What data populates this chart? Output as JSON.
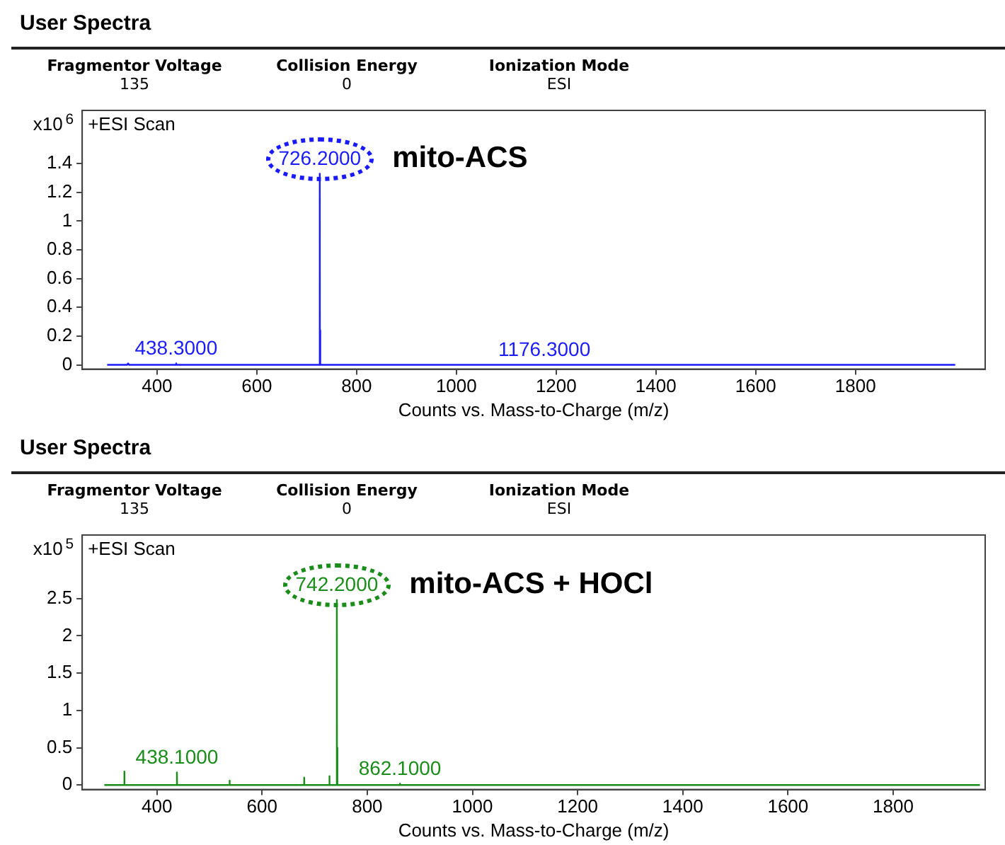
{
  "chart_data": [
    {
      "type": "line",
      "title": "User Spectra",
      "subtitle": "+ESI Scan",
      "xlabel": "Counts vs. Mass-to-Charge (m/z)",
      "ylabel": "x10$^{6}$",
      "annotations": [
        "Fragmentor Voltage",
        "135",
        "Collision Energy",
        "0",
        "Ionization Mode",
        "ESI",
        "mito-ACS",
        {
          "text": "726.2000",
          "x": 726.2,
          "y": 1.33
        },
        {
          "text": "438.3000",
          "x": 438.3,
          "y": 0.01
        },
        {
          "text": "1176.3000",
          "x": 1176.3,
          "y": 0
        }
      ],
      "series": [
        {
          "color": "#1a1aff",
          "x": [
            300,
            340,
            342,
            344,
            438,
            438.3,
            438.6,
            600,
            725.9,
            726.2,
            726.5,
            726.9,
            727.2,
            727.5,
            760,
            1176,
            1176.3,
            1176.6,
            2000
          ],
          "values": [
            0,
            0,
            0.01,
            0,
            0,
            0.01,
            0,
            0,
            0,
            1.33,
            0,
            0,
            0.24,
            0,
            0,
            0,
            0,
            0,
            0
          ]
        }
      ],
      "xlim": [
        250,
        2060
      ],
      "xticks": [
        400,
        600,
        800,
        1000,
        1200,
        1400,
        1600,
        1800
      ],
      "ylim": [
        -0.03,
        1.77
      ],
      "yticks": [
        0,
        0.2,
        0.4,
        0.6,
        0.8,
        1,
        1.2,
        1.4
      ],
      "grid": false,
      "legend": false,
      "marker": "none",
      "line_style": "solid"
    },
    {
      "type": "line",
      "title": "User Spectra",
      "subtitle": "+ESI Scan",
      "xlabel": "Counts vs. Mass-to-Charge (m/z)",
      "ylabel": "x10$^{5}$",
      "annotations": [
        "Fragmentor Voltage",
        "135",
        "Collision Energy",
        "0",
        "Ionization Mode",
        "ESI",
        "mito-ACS + HOCl",
        {
          "text": "742.2000",
          "x": 742.2,
          "y": 2.48
        },
        {
          "text": "438.1000",
          "x": 438.1,
          "y": 0.17
        },
        {
          "text": "862.1000",
          "x": 862.1,
          "y": 0.02
        }
      ],
      "series": [
        {
          "color": "#1a8c1a",
          "x": [
            300,
            337.8,
            338.1,
            338.4,
            437.8,
            438.1,
            438.4,
            538,
            538.3,
            538.6,
            679.8,
            680.1,
            680.4,
            727.8,
            728.1,
            728.4,
            741.9,
            742.2,
            742.5,
            743,
            743.2,
            743.5,
            861.8,
            862.1,
            862.4,
            1965
          ],
          "values": [
            0,
            0,
            0.18,
            0,
            0,
            0.17,
            0,
            0,
            0.06,
            0,
            0,
            0.1,
            0,
            0,
            0.12,
            0,
            0,
            2.48,
            0,
            0,
            0.5,
            0,
            0,
            0.02,
            0,
            0
          ]
        }
      ],
      "xlim": [
        258,
        1975
      ],
      "xticks": [
        400,
        600,
        800,
        1000,
        1200,
        1400,
        1600,
        1800
      ],
      "ylim": [
        -0.06,
        3.35
      ],
      "yticks": [
        0,
        0.5,
        1,
        1.5,
        2,
        2.5
      ],
      "grid": false,
      "legend": false,
      "marker": "none",
      "line_style": "solid"
    }
  ]
}
